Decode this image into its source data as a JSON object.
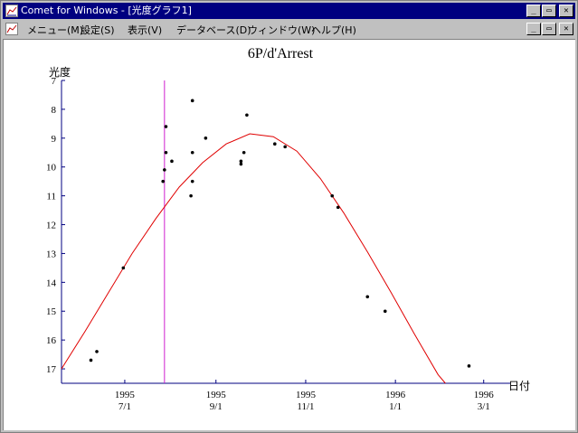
{
  "window": {
    "title": "Comet for Windows - [光度グラフ1]",
    "buttons": [
      "_",
      "▭",
      "✕"
    ]
  },
  "menu": {
    "items": [
      "メニュー(M)",
      "設定(S)",
      "表示(V)",
      "データベース(D)",
      "ウィンドウ(W)",
      "ヘルプ(H)"
    ],
    "buttons": [
      "_",
      "▭",
      "✕"
    ]
  },
  "chart_data": {
    "type": "scatter",
    "title": "6P/d'Arrest",
    "ylabel": "光度",
    "xlabel": "日付",
    "y_inverted": true,
    "ylim": [
      17.5,
      7
    ],
    "y_ticks": [
      7,
      8,
      9,
      10,
      11,
      12,
      13,
      14,
      15,
      16,
      17
    ],
    "xlim": [
      "1995-05-19",
      "1996-03-19"
    ],
    "x_ticks": [
      {
        "date": "1995-07-01",
        "year": "1995",
        "md": "7/1"
      },
      {
        "date": "1995-09-01",
        "year": "1995",
        "md": "9/1"
      },
      {
        "date": "1995-11-01",
        "year": "1995",
        "md": "11/1"
      },
      {
        "date": "1996-01-01",
        "year": "1996",
        "md": "1/1"
      },
      {
        "date": "1996-03-01",
        "year": "1996",
        "md": "3/1"
      }
    ],
    "marker_line": {
      "date": "1995-07-28",
      "color": "#d020d0"
    },
    "points": [
      {
        "date": "1995-06-08",
        "mag": 16.7
      },
      {
        "date": "1995-06-12",
        "mag": 16.4
      },
      {
        "date": "1995-06-30",
        "mag": 13.5
      },
      {
        "date": "1995-07-27",
        "mag": 10.5
      },
      {
        "date": "1995-07-28",
        "mag": 10.1
      },
      {
        "date": "1995-07-29",
        "mag": 9.5
      },
      {
        "date": "1995-07-29",
        "mag": 8.6
      },
      {
        "date": "1995-08-02",
        "mag": 9.8
      },
      {
        "date": "1995-08-15",
        "mag": 11.0
      },
      {
        "date": "1995-08-16",
        "mag": 10.5
      },
      {
        "date": "1995-08-16",
        "mag": 9.5
      },
      {
        "date": "1995-08-16",
        "mag": 7.7
      },
      {
        "date": "1995-08-25",
        "mag": 9.0
      },
      {
        "date": "1995-09-18",
        "mag": 9.8
      },
      {
        "date": "1995-09-18",
        "mag": 9.9
      },
      {
        "date": "1995-09-20",
        "mag": 9.5
      },
      {
        "date": "1995-09-22",
        "mag": 8.2
      },
      {
        "date": "1995-10-11",
        "mag": 9.2
      },
      {
        "date": "1995-10-18",
        "mag": 9.3
      },
      {
        "date": "1995-11-19",
        "mag": 11.0
      },
      {
        "date": "1995-11-23",
        "mag": 11.4
      },
      {
        "date": "1995-12-13",
        "mag": 14.5
      },
      {
        "date": "1995-12-25",
        "mag": 15.0
      },
      {
        "date": "1996-02-20",
        "mag": 16.9
      }
    ],
    "curve": {
      "color": "#e00000",
      "points": [
        {
          "date": "1995-05-19",
          "mag": 17.0
        },
        {
          "date": "1995-06-04",
          "mag": 15.7
        },
        {
          "date": "1995-06-20",
          "mag": 14.35
        },
        {
          "date": "1995-07-06",
          "mag": 13.0
        },
        {
          "date": "1995-07-22",
          "mag": 11.8
        },
        {
          "date": "1995-08-07",
          "mag": 10.7
        },
        {
          "date": "1995-08-23",
          "mag": 9.85
        },
        {
          "date": "1995-09-08",
          "mag": 9.2
        },
        {
          "date": "1995-09-24",
          "mag": 8.85
        },
        {
          "date": "1995-10-10",
          "mag": 8.95
        },
        {
          "date": "1995-10-26",
          "mag": 9.45
        },
        {
          "date": "1995-11-11",
          "mag": 10.4
        },
        {
          "date": "1995-11-27",
          "mag": 11.6
        },
        {
          "date": "1995-12-13",
          "mag": 12.95
        },
        {
          "date": "1995-12-29",
          "mag": 14.35
        },
        {
          "date": "1996-01-14",
          "mag": 15.8
        },
        {
          "date": "1996-01-30",
          "mag": 17.2
        },
        {
          "date": "1996-02-04",
          "mag": 17.5
        }
      ]
    }
  }
}
